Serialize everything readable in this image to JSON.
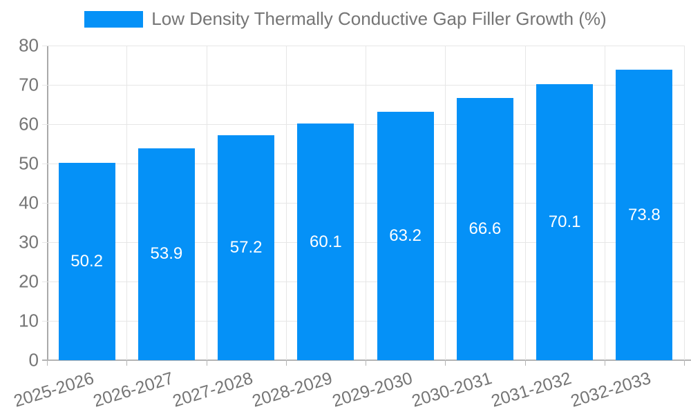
{
  "legend": {
    "label": "Low Density Thermally Conductive Gap Filler Growth (%)"
  },
  "colors": {
    "bar": "#0591f7",
    "axis_text": "#757575",
    "grid": "#e6e6e6",
    "axis_line": "#adadad",
    "value_label": "#ffffff",
    "background": "#ffffff"
  },
  "chart_data": {
    "type": "bar",
    "categories": [
      "2025-2026",
      "2026-2027",
      "2027-2028",
      "2028-2029",
      "2029-2030",
      "2030-2031",
      "2031-2032",
      "2032-2033"
    ],
    "values": [
      50.2,
      53.9,
      57.2,
      60.1,
      63.2,
      66.6,
      70.1,
      73.8
    ],
    "title": "Low Density Thermally Conductive Gap Filler Growth (%)",
    "xlabel": "",
    "ylabel": "",
    "ylim": [
      0,
      80
    ],
    "ytick_step": 10,
    "yticks": [
      0,
      10,
      20,
      30,
      40,
      50,
      60,
      70,
      80
    ],
    "grid": true,
    "legend_position": "top",
    "value_labels": "inside-center",
    "x_label_rotation": -17
  }
}
